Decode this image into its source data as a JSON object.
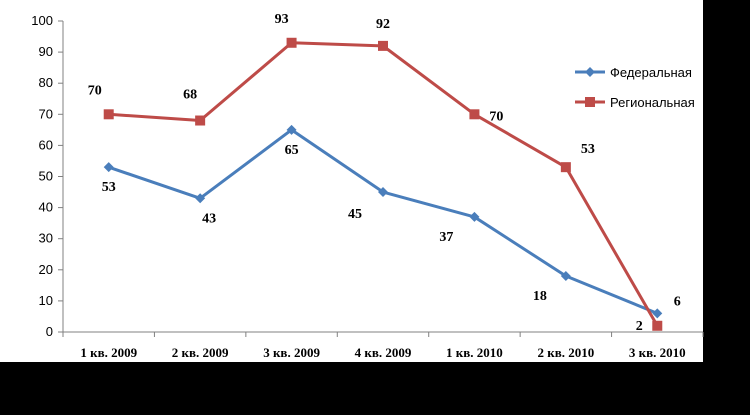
{
  "chart_data": {
    "type": "line",
    "categories": [
      "1 кв. 2009",
      "2 кв. 2009",
      "3 кв. 2009",
      "4 кв. 2009",
      "1 кв. 2010",
      "2 кв. 2010",
      "3 кв. 2010"
    ],
    "ylim": [
      0,
      100
    ],
    "yticks": [
      0,
      10,
      20,
      30,
      40,
      50,
      60,
      70,
      80,
      90,
      100
    ],
    "grid": false,
    "legend_position": "right",
    "series": [
      {
        "name": "Федеральная",
        "color": "#4a7ebb",
        "marker": "diamond",
        "values": [
          53,
          43,
          65,
          45,
          37,
          18,
          6
        ],
        "labels": [
          "53",
          "43",
          "65",
          "45",
          "37",
          "18",
          "6"
        ]
      },
      {
        "name": "Региональная",
        "color": "#be4b48",
        "marker": "square",
        "values": [
          70,
          68,
          93,
          92,
          70,
          53,
          2
        ],
        "labels": [
          "70",
          "68",
          "93",
          "92",
          "70",
          "53",
          "2"
        ]
      }
    ]
  }
}
